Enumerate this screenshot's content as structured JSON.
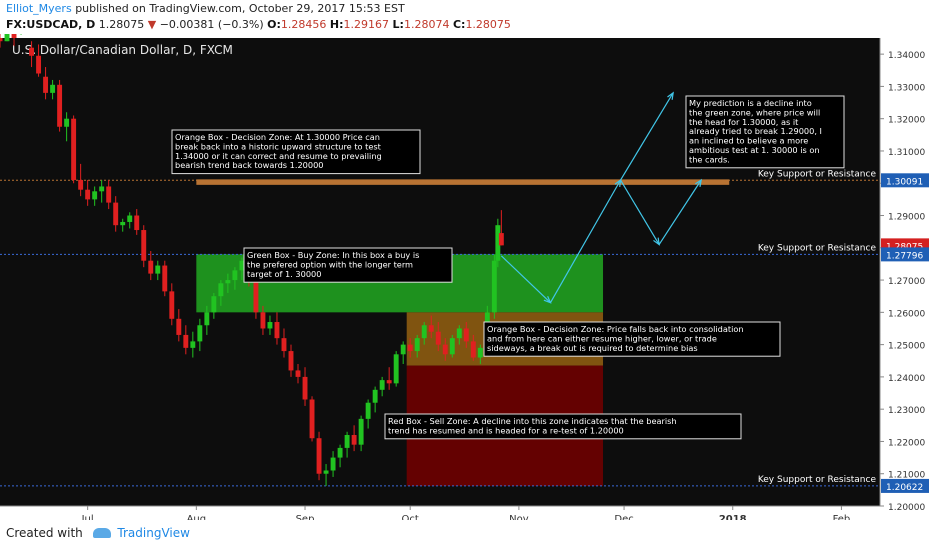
{
  "header": {
    "author": "Elliot_Myers",
    "published": "published on TradingView.com, October 29, 2017 15:53 EST",
    "symbol": "FX:USDCAD, D",
    "last": "1.28075",
    "change_arrow": "▼",
    "change": "−0.00381 (−0.3%)",
    "o_label": "O:",
    "o": "1.28456",
    "h_label": "H:",
    "h": "1.29167",
    "l_label": "L:",
    "l": "1.28074",
    "c_label": "C:",
    "c": "1.28075"
  },
  "footer": {
    "created": "Created with",
    "brand": "TradingView"
  },
  "colors": {
    "background": "#0d0d0d",
    "up": "#21c321",
    "down": "#e02020",
    "green_box": "#1f9c1f",
    "orange_box": "#8a5a10",
    "red_box": "#6b0000",
    "orange_line": "#b87333",
    "blue_line": "#3a6ad8",
    "arrow": "#41c6e8"
  },
  "chart_data": {
    "type": "candlestick",
    "title": "U.S. Dollar/Canadian Dollar, D, FXCM",
    "ylim": [
      1.2,
      1.345
    ],
    "yticks": [
      1.2,
      1.21,
      1.22,
      1.23,
      1.24,
      1.25,
      1.26,
      1.27,
      1.28,
      1.29,
      1.3,
      1.31,
      1.32,
      1.33,
      1.34
    ],
    "x_range": [
      "2017-06-06",
      "2018-02-12"
    ],
    "x_ticks": [
      {
        "date": "2017-07-01",
        "label": "Jul"
      },
      {
        "date": "2017-08-01",
        "label": "Aug"
      },
      {
        "date": "2017-09-01",
        "label": "Sep"
      },
      {
        "date": "2017-10-01",
        "label": "Oct"
      },
      {
        "date": "2017-11-01",
        "label": "Nov"
      },
      {
        "date": "2017-12-01",
        "label": "Dec"
      },
      {
        "date": "2018-01-01",
        "label": "2018"
      },
      {
        "date": "2018-02-01",
        "label": "Feb"
      }
    ],
    "price_labels": [
      {
        "value": 1.30091,
        "label": "1.30091",
        "color": "#1f5fb5"
      },
      {
        "value": 1.28075,
        "label": "1.28075",
        "color": "#d42020"
      },
      {
        "value": 1.27796,
        "label": "1.27796",
        "color": "#1f5fb5"
      },
      {
        "value": 1.20622,
        "label": "1.20622",
        "color": "#1f5fb5"
      }
    ],
    "horizontal_lines": [
      {
        "value": 1.30091,
        "label": "Key Support or Resistance",
        "color": "#b87333"
      },
      {
        "value": 1.27796,
        "label": "Key Support or Resistance",
        "color": "#3a6ad8"
      },
      {
        "value": 1.20622,
        "label": "Key Support or Resistance",
        "color": "#3a6ad8"
      }
    ],
    "zones": [
      {
        "name": "green",
        "from": "2017-08-01",
        "to": "2017-11-25",
        "low": 1.26,
        "high": 1.278,
        "color": "#1f9c1f"
      },
      {
        "name": "orange-upper",
        "from": "2017-08-01",
        "to": "2017-12-31",
        "low": 1.2995,
        "high": 1.3012,
        "color": "#b87333"
      },
      {
        "name": "orange",
        "from": "2017-09-30",
        "to": "2017-11-25",
        "low": 1.2435,
        "high": 1.26,
        "color": "#8a5a10"
      },
      {
        "name": "red",
        "from": "2017-09-30",
        "to": "2017-11-25",
        "low": 1.2062,
        "high": 1.2435,
        "color": "#6b0000"
      }
    ],
    "annotations": [
      {
        "text": "Orange Box -  Decision Zone: At 1.30000 Price can break back into a historic upward structure to test 1.34000 or it can correct and resume to prevailing bearish trend back towards 1.20000"
      },
      {
        "text": "My prediction is a decline into the green zone, where price will the head for 1.30000, as it already tried to break 1.29000, I an inclined to believe a more ambitious test at 1. 30000 is on the cards."
      },
      {
        "text": "Green Box - Buy Zone: In this box a buy is the prefered option with the longer term target of 1. 30000"
      },
      {
        "text": "Orange Box - Decision Zone: Price falls back into consolidation and from here can either resume higher, lower, or trade sideways, a break out is required to determine bias"
      },
      {
        "text": "Red Box - Sell Zone: A decline into this zone indicates that the bearish trend has resumed and is headed for a re-test of 1.20000"
      }
    ],
    "projection": [
      {
        "date": "2017-10-27",
        "value": 1.2775
      },
      {
        "date": "2017-11-10",
        "value": 1.263
      },
      {
        "date": "2017-11-30",
        "value": 1.301
      },
      {
        "date": "2017-12-11",
        "value": 1.281
      },
      {
        "date": "2017-12-23",
        "value": 1.301
      }
    ],
    "projection_alt": [
      {
        "date": "2017-11-30",
        "value": 1.301
      },
      {
        "date": "2017-12-15",
        "value": 1.328
      }
    ],
    "candles": [
      {
        "d": "2017-06-06",
        "o": 1.345,
        "h": 1.3475,
        "l": 1.342,
        "c": 1.344
      },
      {
        "d": "2017-06-08",
        "o": 1.344,
        "h": 1.348,
        "l": 1.344,
        "c": 1.3465
      },
      {
        "d": "2017-06-10",
        "o": 1.3465,
        "h": 1.348,
        "l": 1.3425,
        "c": 1.345
      },
      {
        "d": "2017-06-12",
        "o": 1.349,
        "h": 1.3525,
        "l": 1.346,
        "c": 1.35
      },
      {
        "d": "2017-06-14",
        "o": 1.35,
        "h": 1.355,
        "l": 1.347,
        "c": 1.352
      },
      {
        "d": "2017-06-15",
        "o": 1.342,
        "h": 1.344,
        "l": 1.336,
        "c": 1.3395
      },
      {
        "d": "2017-06-17",
        "o": 1.3395,
        "h": 1.343,
        "l": 1.333,
        "c": 1.334
      },
      {
        "d": "2017-06-19",
        "o": 1.333,
        "h": 1.336,
        "l": 1.326,
        "c": 1.328
      },
      {
        "d": "2017-06-21",
        "o": 1.328,
        "h": 1.332,
        "l": 1.326,
        "c": 1.3305
      },
      {
        "d": "2017-06-23",
        "o": 1.3305,
        "h": 1.332,
        "l": 1.316,
        "c": 1.3175
      },
      {
        "d": "2017-06-25",
        "o": 1.3175,
        "h": 1.322,
        "l": 1.313,
        "c": 1.32
      },
      {
        "d": "2017-06-27",
        "o": 1.32,
        "h": 1.321,
        "l": 1.3,
        "c": 1.301
      },
      {
        "d": "2017-06-29",
        "o": 1.301,
        "h": 1.306,
        "l": 1.296,
        "c": 1.298
      },
      {
        "d": "2017-07-01",
        "o": 1.298,
        "h": 1.301,
        "l": 1.293,
        "c": 1.295
      },
      {
        "d": "2017-07-03",
        "o": 1.295,
        "h": 1.299,
        "l": 1.293,
        "c": 1.2975
      },
      {
        "d": "2017-07-05",
        "o": 1.2975,
        "h": 1.301,
        "l": 1.294,
        "c": 1.299
      },
      {
        "d": "2017-07-07",
        "o": 1.299,
        "h": 1.301,
        "l": 1.292,
        "c": 1.294
      },
      {
        "d": "2017-07-09",
        "o": 1.294,
        "h": 1.296,
        "l": 1.285,
        "c": 1.287
      },
      {
        "d": "2017-07-11",
        "o": 1.287,
        "h": 1.289,
        "l": 1.285,
        "c": 1.288
      },
      {
        "d": "2017-07-13",
        "o": 1.288,
        "h": 1.291,
        "l": 1.286,
        "c": 1.29
      },
      {
        "d": "2017-07-15",
        "o": 1.29,
        "h": 1.292,
        "l": 1.284,
        "c": 1.2855
      },
      {
        "d": "2017-07-17",
        "o": 1.2855,
        "h": 1.287,
        "l": 1.274,
        "c": 1.276
      },
      {
        "d": "2017-07-19",
        "o": 1.276,
        "h": 1.279,
        "l": 1.27,
        "c": 1.272
      },
      {
        "d": "2017-07-21",
        "o": 1.272,
        "h": 1.276,
        "l": 1.27,
        "c": 1.2745
      },
      {
        "d": "2017-07-23",
        "o": 1.2745,
        "h": 1.276,
        "l": 1.265,
        "c": 1.2665
      },
      {
        "d": "2017-07-25",
        "o": 1.2665,
        "h": 1.269,
        "l": 1.256,
        "c": 1.258
      },
      {
        "d": "2017-07-27",
        "o": 1.258,
        "h": 1.261,
        "l": 1.251,
        "c": 1.253
      },
      {
        "d": "2017-07-29",
        "o": 1.253,
        "h": 1.256,
        "l": 1.247,
        "c": 1.249
      },
      {
        "d": "2017-07-31",
        "o": 1.249,
        "h": 1.254,
        "l": 1.246,
        "c": 1.251
      },
      {
        "d": "2017-08-02",
        "o": 1.251,
        "h": 1.258,
        "l": 1.248,
        "c": 1.256
      },
      {
        "d": "2017-08-04",
        "o": 1.256,
        "h": 1.262,
        "l": 1.253,
        "c": 1.26
      },
      {
        "d": "2017-08-06",
        "o": 1.26,
        "h": 1.266,
        "l": 1.258,
        "c": 1.265
      },
      {
        "d": "2017-08-08",
        "o": 1.265,
        "h": 1.27,
        "l": 1.262,
        "c": 1.269
      },
      {
        "d": "2017-08-10",
        "o": 1.269,
        "h": 1.272,
        "l": 1.266,
        "c": 1.27
      },
      {
        "d": "2017-08-12",
        "o": 1.27,
        "h": 1.274,
        "l": 1.267,
        "c": 1.273
      },
      {
        "d": "2017-08-14",
        "o": 1.273,
        "h": 1.277,
        "l": 1.27,
        "c": 1.276
      },
      {
        "d": "2017-08-16",
        "o": 1.276,
        "h": 1.279,
        "l": 1.268,
        "c": 1.27
      },
      {
        "d": "2017-08-18",
        "o": 1.27,
        "h": 1.272,
        "l": 1.258,
        "c": 1.26
      },
      {
        "d": "2017-08-20",
        "o": 1.26,
        "h": 1.262,
        "l": 1.253,
        "c": 1.255
      },
      {
        "d": "2017-08-22",
        "o": 1.255,
        "h": 1.259,
        "l": 1.253,
        "c": 1.257
      },
      {
        "d": "2017-08-24",
        "o": 1.257,
        "h": 1.26,
        "l": 1.25,
        "c": 1.252
      },
      {
        "d": "2017-08-26",
        "o": 1.252,
        "h": 1.255,
        "l": 1.246,
        "c": 1.248
      },
      {
        "d": "2017-08-28",
        "o": 1.248,
        "h": 1.25,
        "l": 1.24,
        "c": 1.242
      },
      {
        "d": "2017-08-30",
        "o": 1.242,
        "h": 1.244,
        "l": 1.238,
        "c": 1.24
      },
      {
        "d": "2017-09-01",
        "o": 1.24,
        "h": 1.243,
        "l": 1.231,
        "c": 1.233
      },
      {
        "d": "2017-09-03",
        "o": 1.233,
        "h": 1.234,
        "l": 1.22,
        "c": 1.221
      },
      {
        "d": "2017-09-05",
        "o": 1.221,
        "h": 1.223,
        "l": 1.208,
        "c": 1.21
      },
      {
        "d": "2017-09-07",
        "o": 1.21,
        "h": 1.213,
        "l": 1.2062,
        "c": 1.211
      },
      {
        "d": "2017-09-09",
        "o": 1.211,
        "h": 1.217,
        "l": 1.209,
        "c": 1.215
      },
      {
        "d": "2017-09-11",
        "o": 1.215,
        "h": 1.219,
        "l": 1.212,
        "c": 1.218
      },
      {
        "d": "2017-09-13",
        "o": 1.218,
        "h": 1.223,
        "l": 1.215,
        "c": 1.222
      },
      {
        "d": "2017-09-15",
        "o": 1.222,
        "h": 1.225,
        "l": 1.217,
        "c": 1.219
      },
      {
        "d": "2017-09-17",
        "o": 1.219,
        "h": 1.228,
        "l": 1.217,
        "c": 1.227
      },
      {
        "d": "2017-09-19",
        "o": 1.227,
        "h": 1.233,
        "l": 1.224,
        "c": 1.232
      },
      {
        "d": "2017-09-21",
        "o": 1.232,
        "h": 1.237,
        "l": 1.229,
        "c": 1.236
      },
      {
        "d": "2017-09-23",
        "o": 1.236,
        "h": 1.24,
        "l": 1.234,
        "c": 1.239
      },
      {
        "d": "2017-09-25",
        "o": 1.239,
        "h": 1.243,
        "l": 1.236,
        "c": 1.238
      },
      {
        "d": "2017-09-27",
        "o": 1.238,
        "h": 1.248,
        "l": 1.237,
        "c": 1.247
      },
      {
        "d": "2017-09-29",
        "o": 1.247,
        "h": 1.251,
        "l": 1.244,
        "c": 1.25
      },
      {
        "d": "2017-10-01",
        "o": 1.25,
        "h": 1.252,
        "l": 1.246,
        "c": 1.248
      },
      {
        "d": "2017-10-03",
        "o": 1.248,
        "h": 1.253,
        "l": 1.246,
        "c": 1.252
      },
      {
        "d": "2017-10-05",
        "o": 1.252,
        "h": 1.257,
        "l": 1.25,
        "c": 1.256
      },
      {
        "d": "2017-10-07",
        "o": 1.256,
        "h": 1.259,
        "l": 1.252,
        "c": 1.254
      },
      {
        "d": "2017-10-09",
        "o": 1.254,
        "h": 1.257,
        "l": 1.248,
        "c": 1.25
      },
      {
        "d": "2017-10-11",
        "o": 1.25,
        "h": 1.252,
        "l": 1.245,
        "c": 1.247
      },
      {
        "d": "2017-10-13",
        "o": 1.247,
        "h": 1.253,
        "l": 1.246,
        "c": 1.252
      },
      {
        "d": "2017-10-15",
        "o": 1.252,
        "h": 1.256,
        "l": 1.25,
        "c": 1.255
      },
      {
        "d": "2017-10-17",
        "o": 1.255,
        "h": 1.257,
        "l": 1.249,
        "c": 1.251
      },
      {
        "d": "2017-10-19",
        "o": 1.251,
        "h": 1.253,
        "l": 1.245,
        "c": 1.246
      },
      {
        "d": "2017-10-21",
        "o": 1.246,
        "h": 1.25,
        "l": 1.244,
        "c": 1.249
      },
      {
        "d": "2017-10-23",
        "o": 1.249,
        "h": 1.262,
        "l": 1.247,
        "c": 1.26
      },
      {
        "d": "2017-10-25",
        "o": 1.26,
        "h": 1.278,
        "l": 1.258,
        "c": 1.276
      },
      {
        "d": "2017-10-26",
        "o": 1.276,
        "h": 1.289,
        "l": 1.274,
        "c": 1.287
      },
      {
        "d": "2017-10-27",
        "o": 1.28456,
        "h": 1.29167,
        "l": 1.28074,
        "c": 1.28075
      }
    ]
  }
}
